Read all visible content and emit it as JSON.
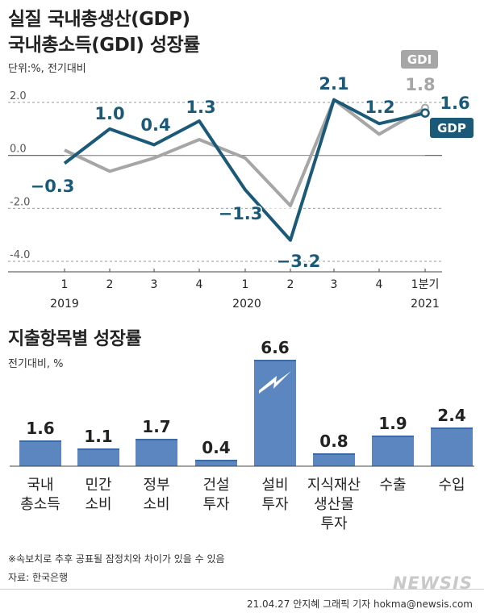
{
  "header": {
    "title_line1": "실질 국내총생산(GDP)",
    "title_line2": "국내총소득(GDI) 성장률",
    "unit": "단위:%, 전기대비"
  },
  "colors": {
    "gdp": "#1a5a78",
    "gdi": "#a6a6a6",
    "bar": "#5b86c0",
    "bar_top": "#3d6aa7"
  },
  "chart_data": [
    {
      "type": "line",
      "categories": [
        "1",
        "2",
        "3",
        "4",
        "1",
        "2",
        "3",
        "4",
        "1분기"
      ],
      "year_labels": [
        "2019",
        "2020",
        "2021"
      ],
      "ylim": [
        -4.0,
        2.0
      ],
      "yticks": [
        "2.0",
        "0.0",
        "-2.0",
        "-4.0"
      ],
      "series": [
        {
          "name": "GDP",
          "values": [
            -0.3,
            1.0,
            0.4,
            1.3,
            -1.3,
            -3.2,
            2.1,
            1.2,
            1.6
          ],
          "labels": [
            "−0.3",
            "1.0",
            "0.4",
            "1.3",
            "−1.3",
            "−3.2",
            "2.1",
            "1.2",
            "1.6"
          ]
        },
        {
          "name": "GDI",
          "values": [
            0.2,
            -0.6,
            -0.1,
            0.6,
            -0.1,
            -1.9,
            2.1,
            0.8,
            1.8
          ],
          "labels": [
            "1.8"
          ]
        }
      ]
    },
    {
      "type": "bar",
      "title": "지출항목별 성장률",
      "unit": "전기대비, %",
      "categories": [
        [
          "국내",
          "총소득"
        ],
        [
          "민간",
          "소비"
        ],
        [
          "정부",
          "소비"
        ],
        [
          "건설",
          "투자"
        ],
        [
          "설비",
          "투자"
        ],
        [
          "지식재산",
          "생산물",
          "투자"
        ],
        [
          "수출"
        ],
        [
          "수입"
        ]
      ],
      "values": [
        1.6,
        1.1,
        1.7,
        0.4,
        6.6,
        0.8,
        1.9,
        2.4
      ],
      "labels": [
        "1.6",
        "1.1",
        "1.7",
        "0.4",
        "6.6",
        "0.8",
        "1.9",
        "2.4"
      ]
    }
  ],
  "footer": {
    "note": "※속보치로 추후 공표될 잠정치와 차이가 있을 수 있음",
    "source": "자료: 한국은행",
    "logo": "NEWSIS",
    "credit": "21.04.27 안지혜 그래픽 기자 hokma@newsis.com"
  }
}
